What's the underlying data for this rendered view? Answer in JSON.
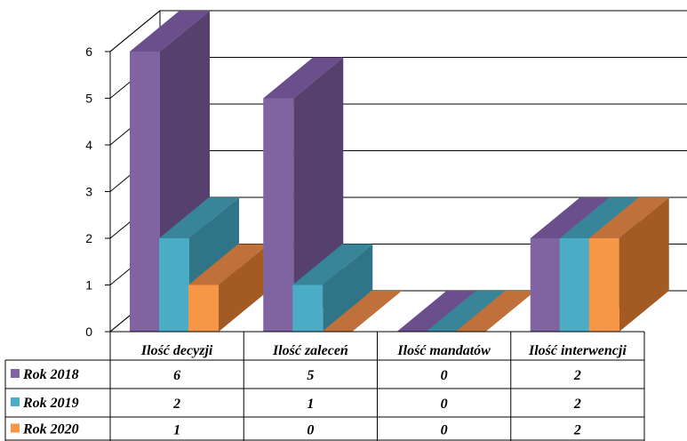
{
  "chart_data": {
    "type": "bar",
    "variant": "3d-clustered-column",
    "categories": [
      "Ilość decyzji",
      "Ilość zaleceń",
      "Ilość mandatów",
      "Ilość interwencji"
    ],
    "series": [
      {
        "name": "Rok 2018",
        "values": [
          6,
          5,
          0,
          2
        ],
        "color": "#8064a2",
        "side": "#55406e",
        "top": "#6a4f8c"
      },
      {
        "name": "Rok 2019",
        "values": [
          2,
          1,
          0,
          2
        ],
        "color": "#4bacc6",
        "side": "#2f7587",
        "top": "#38859a"
      },
      {
        "name": "Rok 2020",
        "values": [
          1,
          0,
          0,
          2
        ],
        "color": "#f79646",
        "side": "#a35a23",
        "top": "#c0703a"
      }
    ],
    "ylim": [
      0,
      6
    ],
    "yticks": [
      "0",
      "1",
      "2",
      "3",
      "4",
      "5",
      "6"
    ],
    "grid": true,
    "legend": "data-table-left",
    "data_table": [
      {
        "name": "Rok 2018",
        "cells": [
          "6",
          "5",
          "0",
          "2"
        ]
      },
      {
        "name": "Rok 2019",
        "cells": [
          "2",
          "1",
          "0",
          "2"
        ]
      },
      {
        "name": "Rok 2020",
        "cells": [
          "1",
          "0",
          "0",
          "2"
        ]
      }
    ]
  }
}
